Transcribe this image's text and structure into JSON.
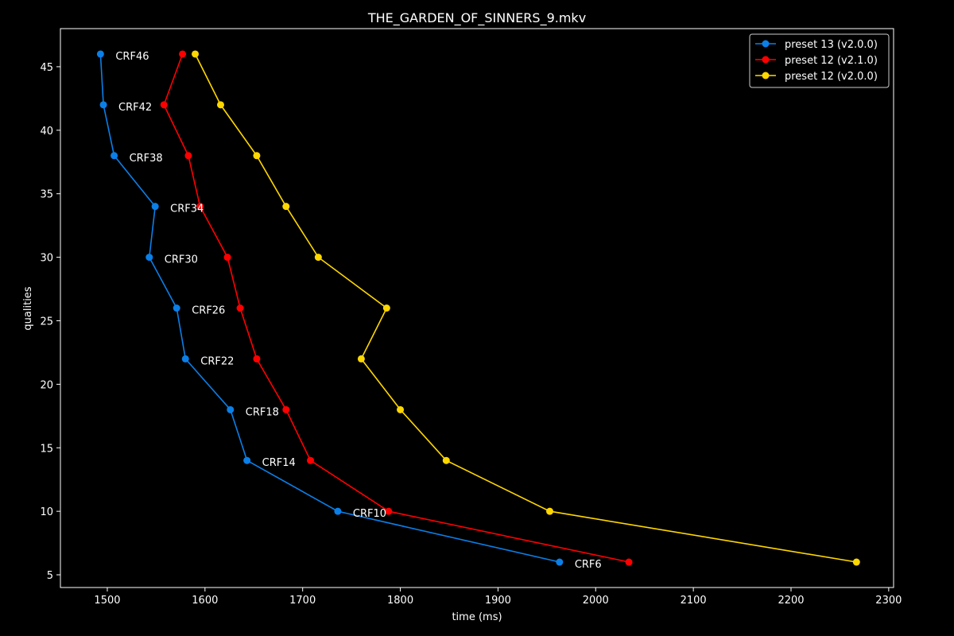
{
  "chart_data": {
    "type": "line",
    "title": "THE_GARDEN_OF_SINNERS_9.mkv",
    "xlabel": "time (ms)",
    "ylabel": "qualities",
    "xlim": [
      1452,
      2305
    ],
    "ylim": [
      4,
      48
    ],
    "xticks": [
      1500,
      1600,
      1700,
      1800,
      1900,
      2000,
      2100,
      2200,
      2300
    ],
    "yticks": [
      5,
      10,
      15,
      20,
      25,
      30,
      35,
      40,
      45
    ],
    "grid": false,
    "legend_position": "top-right",
    "series": [
      {
        "name": "preset 13 (v2.0.0)",
        "color": "#0a7fe8",
        "x": [
          1963,
          1736,
          1643,
          1626,
          1580,
          1571,
          1543,
          1549,
          1507,
          1496,
          1493
        ],
        "y": [
          6,
          10,
          14,
          18,
          22,
          26,
          30,
          34,
          38,
          42,
          46
        ]
      },
      {
        "name": "preset 12 (v2.1.0)",
        "color": "#ff0000",
        "x": [
          2034,
          1788,
          1708,
          1683,
          1653,
          1636,
          1623,
          1595,
          1583,
          1558,
          1577
        ],
        "y": [
          6,
          10,
          14,
          18,
          22,
          26,
          30,
          34,
          38,
          42,
          46
        ]
      },
      {
        "name": "preset 12 (v2.0.0)",
        "color": "#ffd700",
        "x": [
          2267,
          1953,
          1847,
          1800,
          1760,
          1786,
          1716,
          1683,
          1653,
          1616,
          1590
        ],
        "y": [
          6,
          10,
          14,
          18,
          22,
          26,
          30,
          34,
          38,
          42,
          46
        ]
      }
    ],
    "annotations": [
      {
        "text": "CRF6",
        "x": 1963,
        "y": 6
      },
      {
        "text": "CRF10",
        "x": 1736,
        "y": 10
      },
      {
        "text": "CRF14",
        "x": 1643,
        "y": 14
      },
      {
        "text": "CRF18",
        "x": 1626,
        "y": 18
      },
      {
        "text": "CRF22",
        "x": 1580,
        "y": 22
      },
      {
        "text": "CRF26",
        "x": 1571,
        "y": 26
      },
      {
        "text": "CRF30",
        "x": 1543,
        "y": 30
      },
      {
        "text": "CRF34",
        "x": 1549,
        "y": 34
      },
      {
        "text": "CRF38",
        "x": 1507,
        "y": 38
      },
      {
        "text": "CRF42",
        "x": 1496,
        "y": 42
      },
      {
        "text": "CRF46",
        "x": 1493,
        "y": 46
      }
    ]
  }
}
